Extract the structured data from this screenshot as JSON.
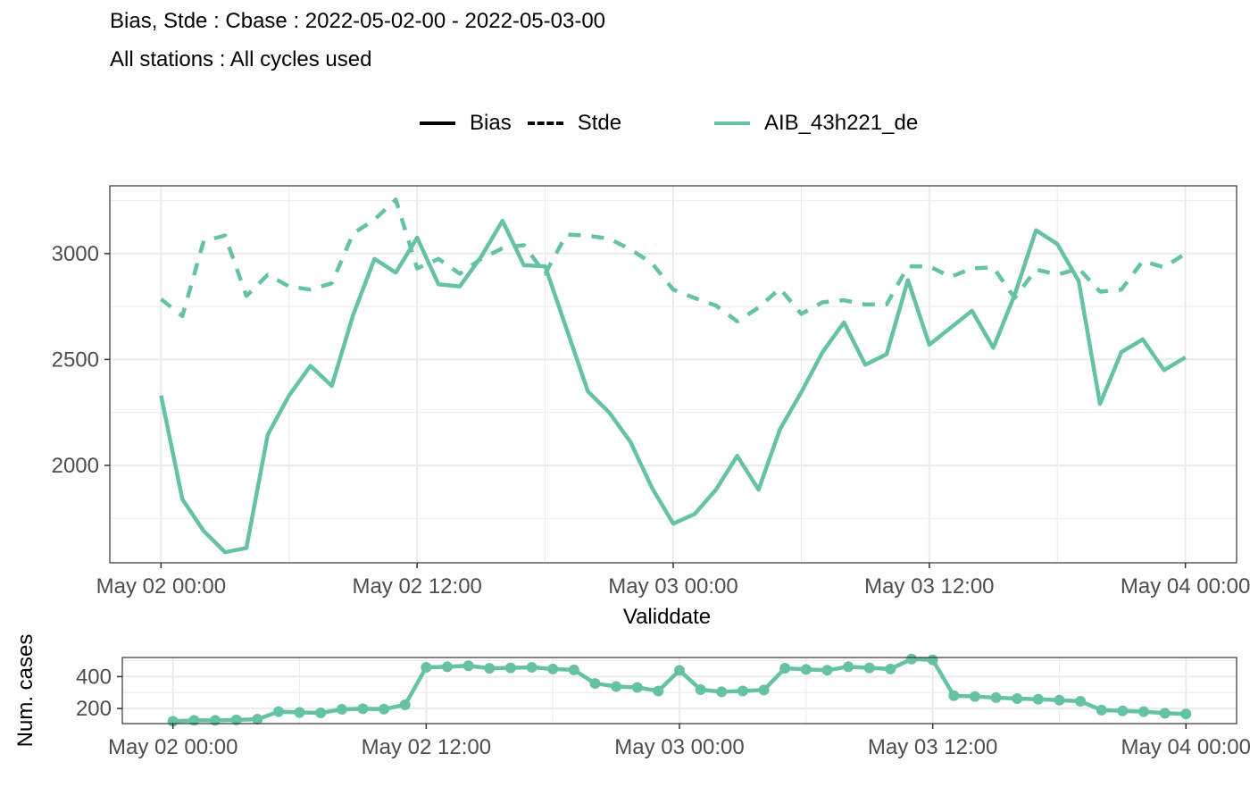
{
  "title": "Bias, Stde : Cbase : 2022-05-02-00 - 2022-05-03-00",
  "subtitle": "All stations : All cycles used",
  "legend": {
    "linetypes": [
      "Bias",
      "Stde"
    ],
    "series": "AIB_43h221_de"
  },
  "colors": {
    "series": "#66c2a5",
    "grid": "#ebebeb",
    "axis": "#333333"
  },
  "chart_data": [
    {
      "type": "line",
      "name": "bias_stde",
      "xlabel": "Validdate",
      "ylabel": "",
      "x_ticks": [
        "May 02 00:00",
        "May 02 12:00",
        "May 03 00:00",
        "May 03 12:00",
        "May 04 00:00"
      ],
      "x_tick_hours": [
        0,
        12,
        24,
        36,
        48
      ],
      "y_ticks": [
        2000,
        2500,
        3000
      ],
      "ylim": [
        1540,
        3320
      ],
      "xlim_hours": [
        -2.4,
        50.4
      ],
      "grid": true,
      "legend_position": "top",
      "x_hours": [
        0,
        1,
        2,
        3,
        4,
        5,
        6,
        7,
        8,
        9,
        10,
        11,
        12,
        13,
        14,
        15,
        16,
        17,
        18,
        19,
        20,
        21,
        22,
        23,
        24,
        25,
        26,
        27,
        28,
        29,
        30,
        31,
        32,
        33,
        34,
        35,
        36,
        37,
        38,
        39,
        40,
        41,
        42,
        43,
        44,
        45,
        46,
        47,
        48
      ],
      "series": [
        {
          "name": "AIB_43h221_de",
          "metric": "Bias",
          "linetype": "solid",
          "values": [
            2330,
            1840,
            1690,
            1590,
            1610,
            2145,
            2330,
            2470,
            2375,
            2710,
            2975,
            2910,
            3075,
            2855,
            2845,
            2985,
            3155,
            2945,
            2940,
            2645,
            2350,
            2250,
            2110,
            1895,
            1725,
            1770,
            1885,
            2045,
            1885,
            2170,
            2345,
            2535,
            2675,
            2475,
            2525,
            2875,
            2570,
            2650,
            2730,
            2555,
            2805,
            3110,
            3045,
            2870,
            2290,
            2535,
            2595,
            2450,
            2510
          ]
        },
        {
          "name": "AIB_43h221_de",
          "metric": "Stde",
          "linetype": "dashed",
          "values": [
            2785,
            2705,
            3060,
            3085,
            2800,
            2900,
            2845,
            2830,
            2860,
            3095,
            3160,
            3255,
            2930,
            2975,
            2905,
            2975,
            3025,
            3040,
            2905,
            3090,
            3085,
            3070,
            3020,
            2955,
            2830,
            2790,
            2755,
            2680,
            2745,
            2835,
            2715,
            2770,
            2780,
            2760,
            2760,
            2940,
            2940,
            2890,
            2930,
            2935,
            2790,
            2925,
            2900,
            2930,
            2820,
            2830,
            2965,
            2935,
            3000
          ]
        }
      ]
    },
    {
      "type": "line",
      "name": "num_cases",
      "xlabel": "",
      "ylabel": "Num. cases",
      "x_ticks": [
        "May 02 00:00",
        "May 02 12:00",
        "May 03 00:00",
        "May 03 12:00",
        "May 04 00:00"
      ],
      "x_tick_hours": [
        0,
        12,
        24,
        36,
        48
      ],
      "y_ticks": [
        200,
        400
      ],
      "ylim": [
        105,
        520
      ],
      "xlim_hours": [
        -2.4,
        50.4
      ],
      "grid": true,
      "markers": true,
      "x_hours": [
        0,
        1,
        2,
        3,
        4,
        5,
        6,
        7,
        8,
        9,
        10,
        11,
        12,
        13,
        14,
        15,
        16,
        17,
        18,
        19,
        20,
        21,
        22,
        23,
        24,
        25,
        26,
        27,
        28,
        29,
        30,
        31,
        32,
        33,
        34,
        35,
        36,
        37,
        38,
        39,
        40,
        41,
        42,
        43,
        44,
        45,
        46,
        47,
        48
      ],
      "series": [
        {
          "name": "AIB_43h221_de",
          "values": [
            120,
            125,
            125,
            128,
            132,
            180,
            175,
            172,
            195,
            198,
            196,
            223,
            458,
            462,
            468,
            452,
            455,
            458,
            448,
            442,
            357,
            338,
            332,
            310,
            439,
            318,
            305,
            310,
            316,
            453,
            445,
            440,
            462,
            455,
            448,
            510,
            505,
            280,
            275,
            268,
            262,
            258,
            252,
            245,
            190,
            185,
            180,
            170,
            165
          ]
        }
      ]
    }
  ]
}
